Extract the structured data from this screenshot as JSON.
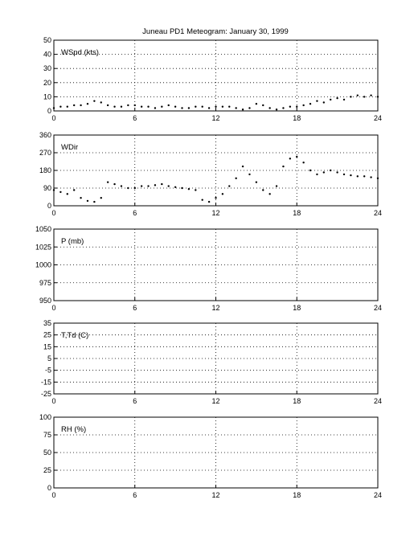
{
  "figure": {
    "title": "Juneau PD1 Meteogram:    January 30, 1999"
  },
  "chart_data": [
    {
      "type": "scatter",
      "label": "WSpd (kts)",
      "xlim": [
        0,
        24
      ],
      "ylim": [
        0,
        50
      ],
      "xticks": [
        0,
        6,
        12,
        18,
        24
      ],
      "yticks": [
        0,
        10,
        20,
        30,
        40,
        50
      ],
      "grid": true,
      "series": [
        {
          "x": [
            0,
            0.5,
            1,
            1.5,
            2,
            2.5,
            3,
            3.5,
            4,
            4.5,
            5,
            5.5,
            6,
            6.5,
            7,
            7.5,
            8,
            8.5,
            9,
            9.5,
            10,
            10.5,
            11,
            11.5,
            12,
            12.5,
            13,
            13.5,
            14,
            14.5,
            15,
            15.5,
            16,
            16.5,
            17,
            17.5,
            18,
            18.5,
            19,
            19.5,
            20,
            20.5,
            21,
            21.5,
            22,
            22.5,
            23,
            23.5,
            24
          ],
          "y": [
            2,
            3,
            3,
            4,
            4,
            5,
            7,
            6,
            4,
            3,
            3,
            4,
            4,
            3,
            3,
            2,
            3,
            4,
            3,
            2,
            2,
            3,
            3,
            2,
            3,
            3,
            3,
            2,
            1,
            2,
            5,
            4,
            2,
            1,
            2,
            3,
            3,
            4,
            5,
            7,
            6,
            8,
            9,
            8,
            10,
            11,
            10,
            11,
            10
          ]
        }
      ]
    },
    {
      "type": "scatter",
      "label": "WDir",
      "xlim": [
        0,
        24
      ],
      "ylim": [
        0,
        360
      ],
      "xticks": [
        0,
        6,
        12,
        18,
        24
      ],
      "yticks": [
        0,
        90,
        180,
        270,
        360
      ],
      "grid": true,
      "series": [
        {
          "x": [
            0,
            0.5,
            1,
            1.5,
            2,
            2.5,
            3,
            3.5,
            4,
            4.5,
            5,
            5.5,
            6,
            6.5,
            7,
            7.5,
            8,
            8.5,
            9,
            9.5,
            10,
            10.5,
            11,
            11.5,
            12,
            12.5,
            13,
            13.5,
            14,
            14.5,
            15,
            15.5,
            16,
            16.5,
            17,
            17.5,
            18,
            18.5,
            19,
            19.5,
            20,
            20.5,
            21,
            21.5,
            22,
            22.5,
            23,
            23.5,
            24
          ],
          "y": [
            80,
            70,
            60,
            80,
            40,
            25,
            20,
            40,
            120,
            110,
            100,
            90,
            90,
            100,
            100,
            105,
            110,
            100,
            95,
            90,
            85,
            80,
            30,
            20,
            40,
            60,
            100,
            140,
            200,
            160,
            120,
            80,
            60,
            100,
            200,
            240,
            250,
            220,
            180,
            160,
            170,
            180,
            170,
            160,
            155,
            150,
            150,
            145,
            140
          ]
        }
      ]
    },
    {
      "type": "scatter",
      "label": "P (mb)",
      "xlim": [
        0,
        24
      ],
      "ylim": [
        950,
        1050
      ],
      "xticks": [
        0,
        6,
        12,
        18,
        24
      ],
      "yticks": [
        950,
        975,
        1000,
        1025,
        1050
      ],
      "grid": true,
      "series": []
    },
    {
      "type": "scatter",
      "label": "T,Td (C)",
      "xlim": [
        0,
        24
      ],
      "ylim": [
        -25,
        35
      ],
      "xticks": [
        0,
        6,
        12,
        18,
        24
      ],
      "yticks": [
        -25,
        -15,
        -5,
        5,
        15,
        25,
        35
      ],
      "grid": true,
      "series": []
    },
    {
      "type": "scatter",
      "label": "RH (%)",
      "xlim": [
        0,
        24
      ],
      "ylim": [
        0,
        100
      ],
      "xticks": [
        0,
        6,
        12,
        18,
        24
      ],
      "yticks": [
        0,
        25,
        50,
        75,
        100
      ],
      "grid": true,
      "series": []
    }
  ]
}
